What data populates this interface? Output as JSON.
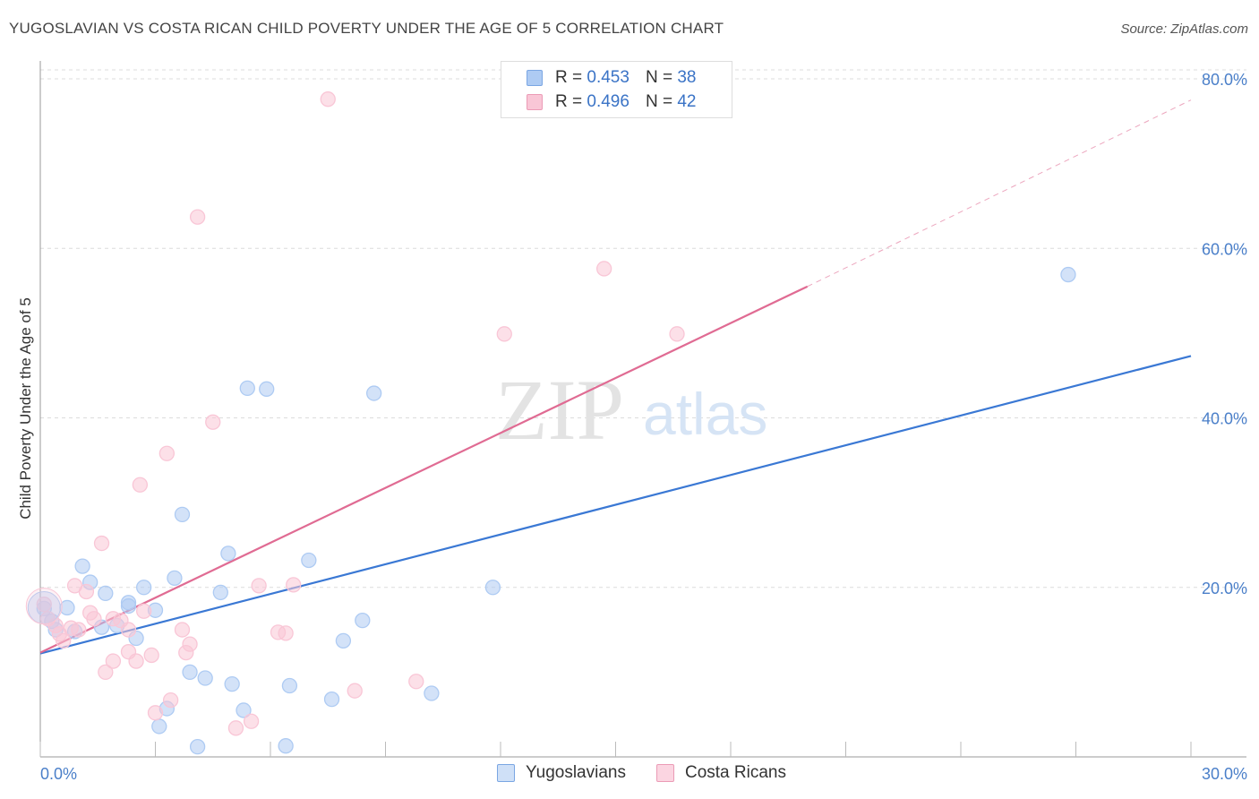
{
  "title": "YUGOSLAVIAN VS COSTA RICAN CHILD POVERTY UNDER THE AGE OF 5 CORRELATION CHART",
  "source": "Source: ZipAtlas.com",
  "watermark": {
    "zip": "ZIP",
    "atlas": "atlas"
  },
  "legend": {
    "r_label": "R =",
    "n_label": "N =",
    "rows": [
      {
        "r": "0.453",
        "n": "38",
        "color": "#aecbf3",
        "border": "#7aa6e3"
      },
      {
        "r": "0.496",
        "n": "42",
        "color": "#f9c6d6",
        "border": "#eb9bb6"
      }
    ]
  },
  "bottom_legend": [
    {
      "label": "Yugoslavians",
      "color": "#cfe0f7",
      "border": "#7aa6e3"
    },
    {
      "label": "Costa Ricans",
      "color": "#fbd5e1",
      "border": "#eb9bb6"
    }
  ],
  "chart_data": {
    "type": "scatter",
    "title": "YUGOSLAVIAN VS COSTA RICAN CHILD POVERTY UNDER THE AGE OF 5 CORRELATION CHART",
    "xlabel": "",
    "ylabel": "Child Poverty Under the Age of 5",
    "xlim": [
      0,
      30
    ],
    "ylim": [
      0,
      80
    ],
    "x_tick_labels": [
      "0.0%",
      "30.0%"
    ],
    "y_ticks": [
      20,
      40,
      60,
      80
    ],
    "y_tick_labels": [
      "20.0%",
      "40.0%",
      "60.0%",
      "80.0%"
    ],
    "grid": true,
    "legend_position": "top-center",
    "series": [
      {
        "name": "Yugoslavians",
        "color": "#3a78d4",
        "fill": "#aecbf3",
        "trend": {
          "x0": 0.0,
          "y0": 12.2,
          "x1": 30.0,
          "y1": 47.3
        },
        "points": [
          [
            0.1,
            17.5
          ],
          [
            0.3,
            16.0
          ],
          [
            0.4,
            15.0
          ],
          [
            0.7,
            17.6
          ],
          [
            0.9,
            14.8
          ],
          [
            1.1,
            22.5
          ],
          [
            1.3,
            20.6
          ],
          [
            1.6,
            15.3
          ],
          [
            1.7,
            19.3
          ],
          [
            2.0,
            15.5
          ],
          [
            2.3,
            18.2
          ],
          [
            2.3,
            17.8
          ],
          [
            2.5,
            14.0
          ],
          [
            2.7,
            20.0
          ],
          [
            3.0,
            17.3
          ],
          [
            3.1,
            3.6
          ],
          [
            3.3,
            5.7
          ],
          [
            3.5,
            21.1
          ],
          [
            3.7,
            28.6
          ],
          [
            3.9,
            10.0
          ],
          [
            4.1,
            1.2
          ],
          [
            4.3,
            9.3
          ],
          [
            4.7,
            19.4
          ],
          [
            4.9,
            24.0
          ],
          [
            5.0,
            8.6
          ],
          [
            5.3,
            5.5
          ],
          [
            5.4,
            43.5
          ],
          [
            5.9,
            43.4
          ],
          [
            6.4,
            1.3
          ],
          [
            6.5,
            8.4
          ],
          [
            7.0,
            23.2
          ],
          [
            7.6,
            6.8
          ],
          [
            7.9,
            13.7
          ],
          [
            8.4,
            16.1
          ],
          [
            8.7,
            42.9
          ],
          [
            10.2,
            7.5
          ],
          [
            11.8,
            20.0
          ],
          [
            26.8,
            56.9
          ]
        ]
      },
      {
        "name": "Costa Ricans",
        "color": "#e06b93",
        "fill": "#f9c6d6",
        "trend": {
          "x0": 0.0,
          "y0": 12.3,
          "x1": 20.0,
          "y1": 55.5
        },
        "trend_extension": {
          "x0": 20.0,
          "y0": 55.5,
          "x1": 30.0,
          "y1": 77.5
        },
        "points": [
          [
            0.1,
            18.0
          ],
          [
            0.2,
            16.3
          ],
          [
            0.4,
            15.5
          ],
          [
            0.5,
            14.5
          ],
          [
            0.6,
            13.7
          ],
          [
            0.8,
            15.2
          ],
          [
            0.9,
            20.2
          ],
          [
            1.0,
            15.0
          ],
          [
            1.2,
            19.5
          ],
          [
            1.3,
            17.0
          ],
          [
            1.4,
            16.3
          ],
          [
            1.6,
            25.2
          ],
          [
            1.7,
            10.0
          ],
          [
            1.9,
            16.3
          ],
          [
            1.9,
            11.3
          ],
          [
            2.1,
            16.1
          ],
          [
            2.3,
            15.0
          ],
          [
            2.3,
            12.4
          ],
          [
            2.5,
            11.3
          ],
          [
            2.6,
            32.1
          ],
          [
            2.7,
            17.2
          ],
          [
            2.9,
            12.0
          ],
          [
            3.0,
            5.2
          ],
          [
            3.3,
            35.8
          ],
          [
            3.4,
            6.7
          ],
          [
            3.7,
            15.0
          ],
          [
            3.8,
            12.3
          ],
          [
            3.9,
            13.3
          ],
          [
            4.1,
            63.7
          ],
          [
            4.5,
            39.5
          ],
          [
            5.1,
            3.4
          ],
          [
            5.5,
            4.2
          ],
          [
            5.7,
            20.2
          ],
          [
            6.2,
            14.7
          ],
          [
            6.4,
            14.6
          ],
          [
            6.6,
            20.3
          ],
          [
            7.5,
            77.6
          ],
          [
            8.2,
            7.8
          ],
          [
            9.8,
            8.9
          ],
          [
            12.1,
            49.9
          ],
          [
            14.7,
            57.6
          ],
          [
            16.6,
            49.9
          ]
        ]
      }
    ]
  }
}
